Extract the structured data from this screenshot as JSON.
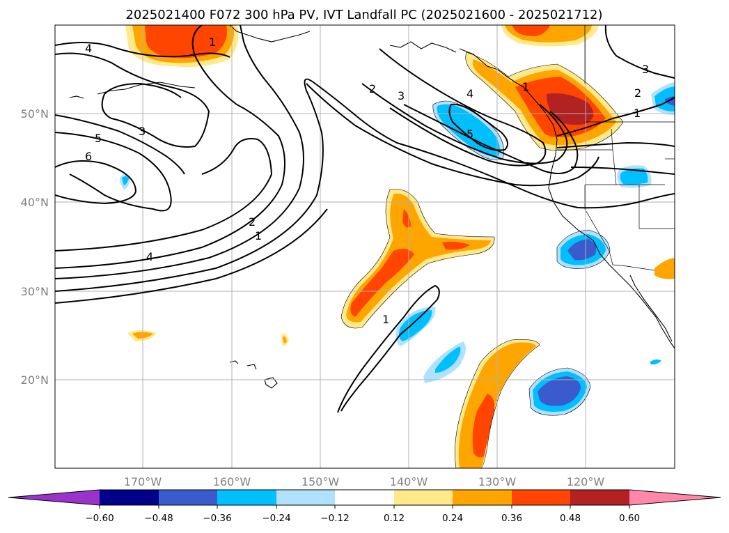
{
  "title": "2025021400 F072 300 hPa PV, IVT Landfall PC (2025021600 - 2025021712)",
  "axes": {
    "lon_ticks": [
      "170°W",
      "160°W",
      "150°W",
      "140°W",
      "130°W",
      "120°W"
    ],
    "lat_ticks": [
      "20°N",
      "30°N",
      "40°N",
      "50°N"
    ]
  },
  "colorbar": {
    "tick_labels": [
      "−0.60",
      "−0.48",
      "−0.36",
      "−0.24",
      "−0.12",
      "0.12",
      "0.24",
      "0.36",
      "0.48",
      "0.60"
    ],
    "colors": [
      "#9933cc",
      "#00008b",
      "#3a5bcd",
      "#00bfff",
      "#b0e2ff",
      "#ffffff",
      "#ffe98a",
      "#ffa500",
      "#ff4500",
      "#b22222",
      "#ff88aa"
    ]
  },
  "contour_labels": [
    "4",
    "5",
    "6",
    "3",
    "2",
    "1",
    "4",
    "2",
    "3",
    "4",
    "5",
    "1",
    "3",
    "2",
    "1",
    "1",
    "1"
  ]
}
